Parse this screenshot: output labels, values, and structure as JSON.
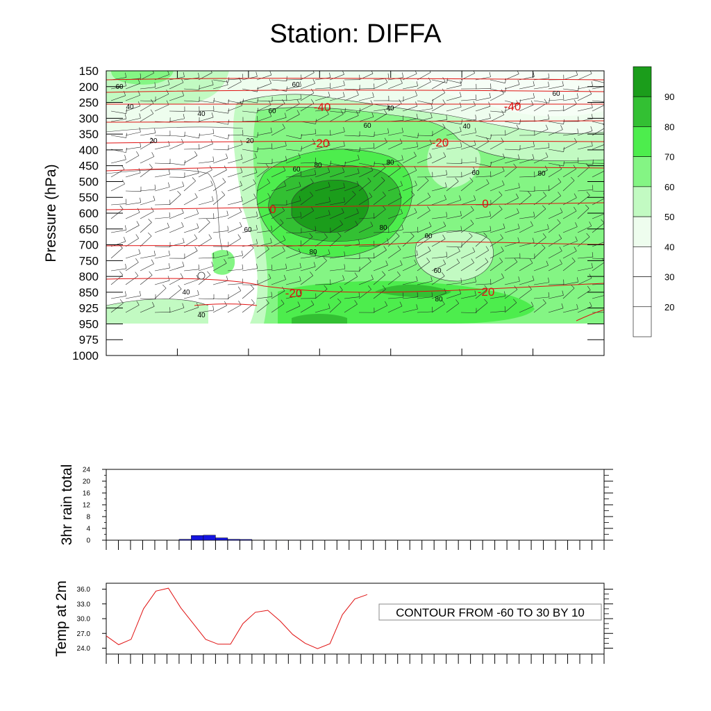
{
  "page": {
    "title": "Station: DIFFA"
  },
  "colorbar": {
    "labels": [
      "90",
      "80",
      "70",
      "60",
      "50",
      "40",
      "30",
      "20"
    ],
    "colors": [
      "#1b9d1b",
      "#33c033",
      "#4ded4d",
      "#84f584",
      "#c2fac2",
      "#eefdee",
      "#ffffff",
      "#ffffff",
      "#ffffff"
    ]
  },
  "chart_data": [
    {
      "type": "contour",
      "ylabel": "Pressure (hPa)",
      "y_ticks": [
        "150",
        "200",
        "250",
        "300",
        "350",
        "400",
        "450",
        "500",
        "550",
        "600",
        "650",
        "700",
        "750",
        "800",
        "850",
        "925",
        "950",
        "975",
        "1000"
      ],
      "humidity_label": "CONTOUR FROM -60 TO 30 BY 10",
      "humidity_levels": [
        20,
        30,
        40,
        50,
        60,
        70,
        80,
        90
      ],
      "temperature_contour_labels": [
        "-40",
        "-40",
        "-20",
        "-20",
        "0",
        "0",
        "-20",
        "-20"
      ],
      "rh_contour_labels": [
        "60",
        "60",
        "40",
        "40",
        "20",
        "20",
        "60",
        "60",
        "40",
        "40",
        "60",
        "80",
        "80",
        "80",
        "60",
        "60",
        "80",
        "60",
        "60",
        "60",
        "80",
        "80",
        "40",
        "40"
      ]
    },
    {
      "type": "bar",
      "ylabel": "3hr rain total",
      "ylim": [
        0,
        24
      ],
      "yticks": [
        "0",
        "4",
        "8",
        "12",
        "16",
        "20",
        "24"
      ],
      "values": [
        0,
        0,
        0,
        0,
        0,
        0,
        0.3,
        1.6,
        1.7,
        0.8,
        0.3,
        0.25,
        0,
        0.05,
        0,
        0.05,
        0,
        0,
        0,
        0,
        0,
        0,
        0,
        0,
        0,
        0,
        0,
        0,
        0,
        0,
        0,
        0,
        0,
        0,
        0,
        0,
        0,
        0,
        0,
        0,
        0
      ]
    },
    {
      "type": "line",
      "ylabel": "Temp at 2m",
      "ylim": [
        22.8,
        37.2
      ],
      "yticks": [
        "24.0",
        "27.0",
        "30.0",
        "33.0",
        "36.0"
      ],
      "values": [
        26.5,
        24.7,
        25.8,
        32.0,
        35.6,
        36.2,
        32.2,
        29.0,
        25.8,
        24.8,
        24.8,
        29.0,
        31.3,
        31.7,
        29.5,
        26.8,
        25.0,
        23.9,
        24.9,
        30.8,
        34.0,
        34.9
      ]
    }
  ]
}
